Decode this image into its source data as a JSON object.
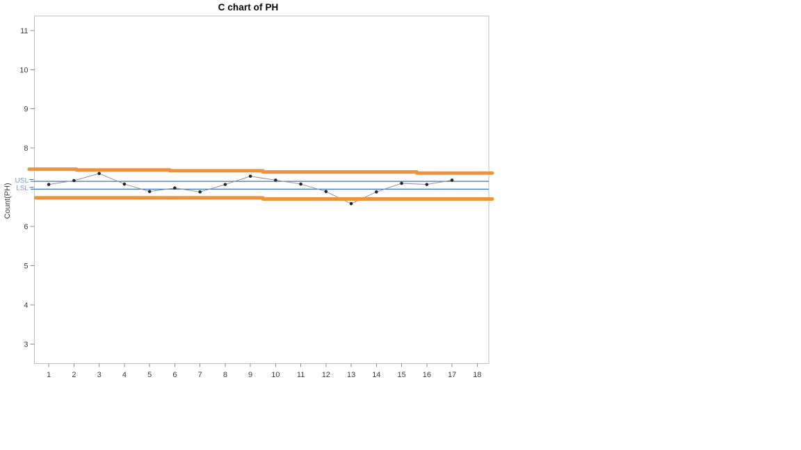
{
  "chart_data": {
    "type": "line",
    "title": "C chart of PH",
    "ylabel": "Count(PH)",
    "xlabel": "",
    "grid": false,
    "legend": "none",
    "marker": "filled-circle",
    "x": [
      1,
      2,
      3,
      4,
      5,
      6,
      7,
      8,
      9,
      10,
      11,
      12,
      13,
      14,
      15,
      16,
      17
    ],
    "values": [
      7.07,
      7.17,
      7.35,
      7.08,
      6.89,
      6.98,
      6.88,
      7.07,
      7.28,
      7.18,
      7.08,
      6.89,
      6.58,
      6.88,
      7.1,
      7.07,
      7.18
    ],
    "x_ticks": [
      1,
      2,
      3,
      4,
      5,
      6,
      7,
      8,
      9,
      10,
      11,
      12,
      13,
      14,
      15,
      16,
      17,
      18
    ],
    "y_ticks": [
      3,
      4,
      5,
      6,
      8,
      9,
      10,
      11
    ],
    "xlim": [
      0.43,
      18.46
    ],
    "ylim": [
      2.5,
      11.37
    ],
    "spec_limits": {
      "usl": {
        "label": "USL",
        "value": 7.15
      },
      "lsl": {
        "label": "LSL",
        "value": 6.95
      }
    },
    "control_limit_steps": {
      "upper": [
        {
          "value": 7.46,
          "from": 0.22,
          "to": 2.1
        },
        {
          "value": 7.44,
          "from": 2.1,
          "to": 5.8
        },
        {
          "value": 7.42,
          "from": 5.8,
          "to": 9.5
        },
        {
          "value": 7.39,
          "from": 9.5,
          "to": 15.6
        },
        {
          "value": 7.36,
          "from": 15.6,
          "to": 18.6
        }
      ],
      "lower": [
        {
          "value": 6.73,
          "from": 0.48,
          "to": 9.5
        },
        {
          "value": 6.7,
          "from": 9.5,
          "to": 18.6
        }
      ]
    },
    "colors": {
      "control_limit": "#F0913C",
      "spec_line": "#4472B4",
      "spec_label": "#7E9BD6",
      "data_line": "#8D9199",
      "marker": "#262626",
      "frame": "#BABEC2",
      "tick_mark": "#8A8A8A",
      "tick_text": "#3B3B3B",
      "axis_title_text": "#404040",
      "title_text": "#000000"
    }
  }
}
